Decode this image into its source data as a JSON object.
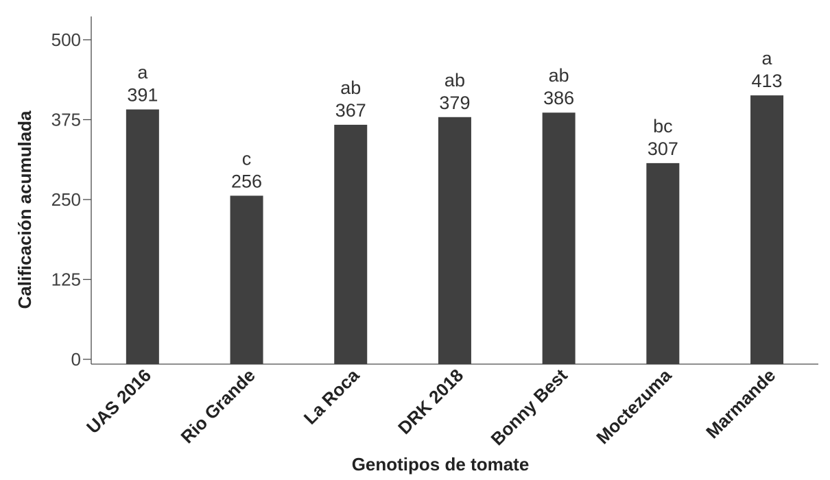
{
  "chart_data": {
    "type": "bar",
    "categories": [
      "UAS 2016",
      "Rio Grande",
      "La Roca",
      "DRK 2018",
      "Bonny Best",
      "Moctezuma",
      "Marmande"
    ],
    "series": [
      {
        "values": [
          391,
          256,
          367,
          379,
          386,
          307,
          413
        ],
        "letters": [
          "a",
          "c",
          "ab",
          "ab",
          "ab",
          "bc",
          "a"
        ],
        "color": "#404040"
      }
    ],
    "xlabel": "Genotipos de tomate",
    "ylabel": "Calificación acumulada",
    "ylim": [
      0,
      500
    ],
    "yticks": [
      "0",
      "125",
      "250",
      "375",
      "500"
    ],
    "grid": false,
    "legend": "none"
  }
}
